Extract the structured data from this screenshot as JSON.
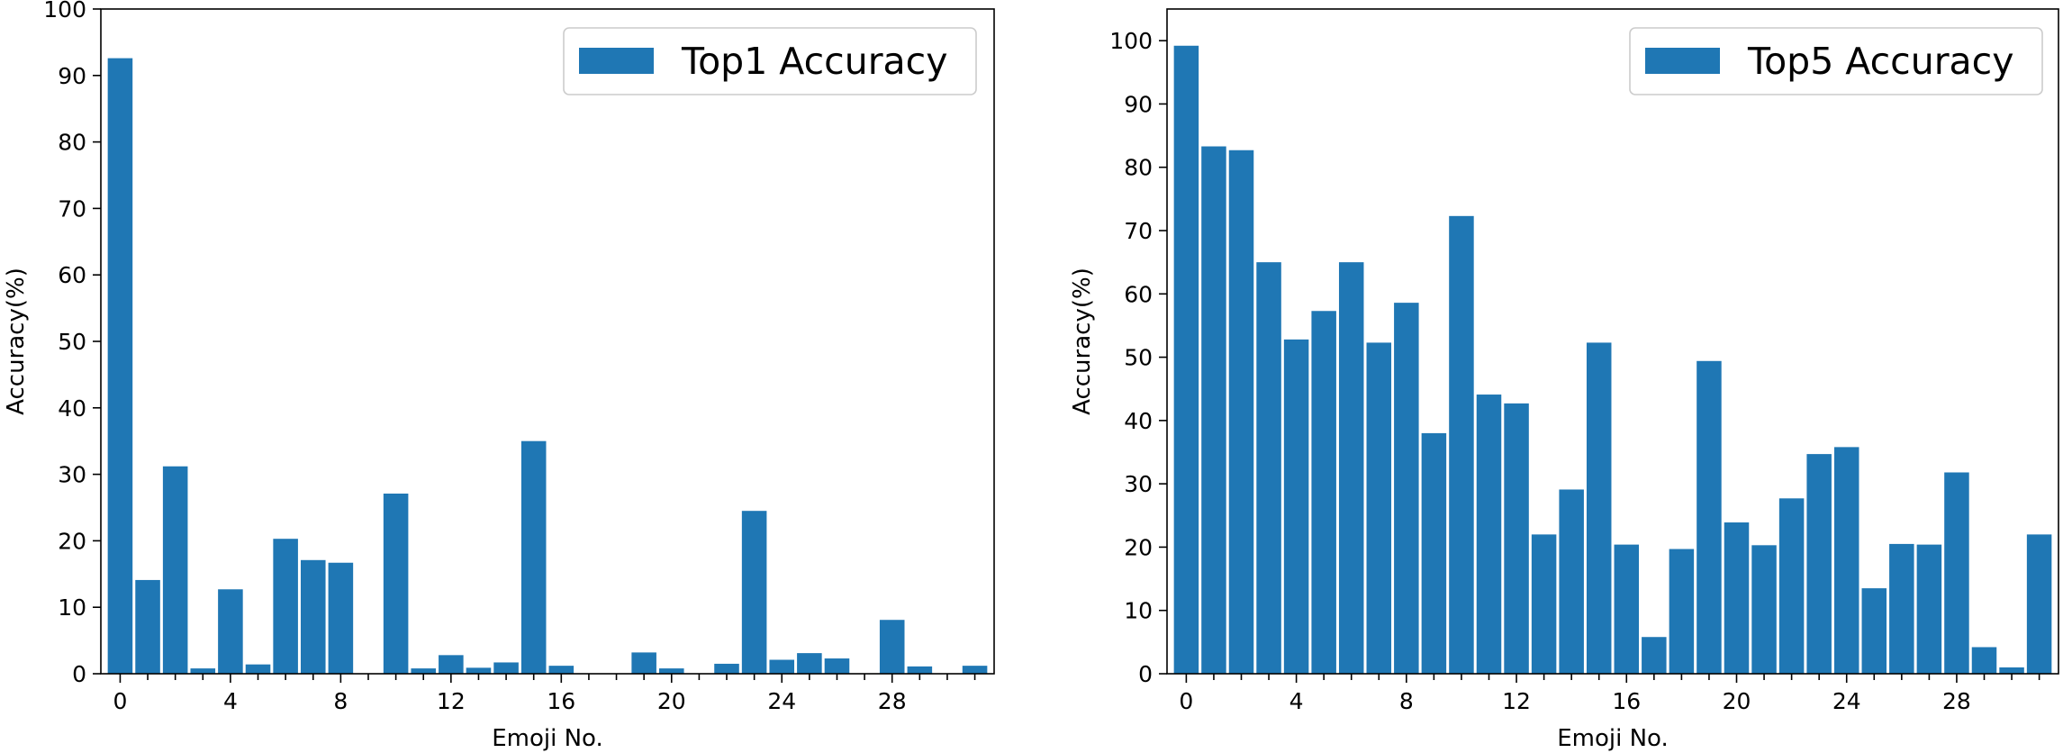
{
  "colors": {
    "bar": "#1f77b4",
    "axis": "#000000",
    "legend_border": "#cccccc"
  },
  "chart_data": [
    {
      "type": "bar",
      "legend": "Top1 Accuracy",
      "legend_position": "top-right",
      "xlabel": "Emoji No.",
      "ylabel": "Accuracy(%)",
      "ylim": [
        0,
        100
      ],
      "yticks": [
        0,
        10,
        20,
        30,
        40,
        50,
        60,
        70,
        80,
        90,
        100
      ],
      "xticks_labeled": [
        0,
        4,
        8,
        12,
        16,
        20,
        24,
        28
      ],
      "xticks_minor_every": 1,
      "categories": [
        0,
        1,
        2,
        3,
        4,
        5,
        6,
        7,
        8,
        9,
        10,
        11,
        12,
        13,
        14,
        15,
        16,
        17,
        18,
        19,
        20,
        21,
        22,
        23,
        24,
        25,
        26,
        27,
        28,
        29,
        30,
        31
      ],
      "values": [
        92.6,
        14.1,
        31.2,
        0.8,
        12.7,
        1.4,
        20.3,
        17.1,
        16.7,
        0,
        27.1,
        0.8,
        2.8,
        0.9,
        1.7,
        35.0,
        1.2,
        0,
        0,
        3.2,
        0.8,
        0,
        1.5,
        24.5,
        2.1,
        3.1,
        2.3,
        0,
        8.1,
        1.1,
        0,
        1.2
      ],
      "grid": false
    },
    {
      "type": "bar",
      "legend": "Top5 Accuracy",
      "legend_position": "top-right",
      "xlabel": "Emoji No.",
      "ylabel": "Accuracy(%)",
      "ylim": [
        0,
        105
      ],
      "yticks": [
        0,
        10,
        20,
        30,
        40,
        50,
        60,
        70,
        80,
        90,
        100
      ],
      "xticks_labeled": [
        0,
        4,
        8,
        12,
        16,
        20,
        24,
        28
      ],
      "xticks_minor_every": 1,
      "categories": [
        0,
        1,
        2,
        3,
        4,
        5,
        6,
        7,
        8,
        9,
        10,
        11,
        12,
        13,
        14,
        15,
        16,
        17,
        18,
        19,
        20,
        21,
        22,
        23,
        24,
        25,
        26,
        27,
        28,
        29,
        30,
        31
      ],
      "values": [
        99.2,
        83.3,
        82.7,
        65.0,
        52.8,
        57.3,
        65.0,
        52.3,
        58.6,
        38.0,
        72.3,
        44.1,
        42.7,
        22.0,
        29.1,
        52.3,
        20.4,
        5.8,
        19.7,
        49.4,
        23.9,
        20.3,
        27.7,
        34.7,
        35.8,
        13.5,
        20.5,
        20.4,
        31.8,
        4.2,
        1.0,
        22.0
      ],
      "grid": false
    }
  ]
}
